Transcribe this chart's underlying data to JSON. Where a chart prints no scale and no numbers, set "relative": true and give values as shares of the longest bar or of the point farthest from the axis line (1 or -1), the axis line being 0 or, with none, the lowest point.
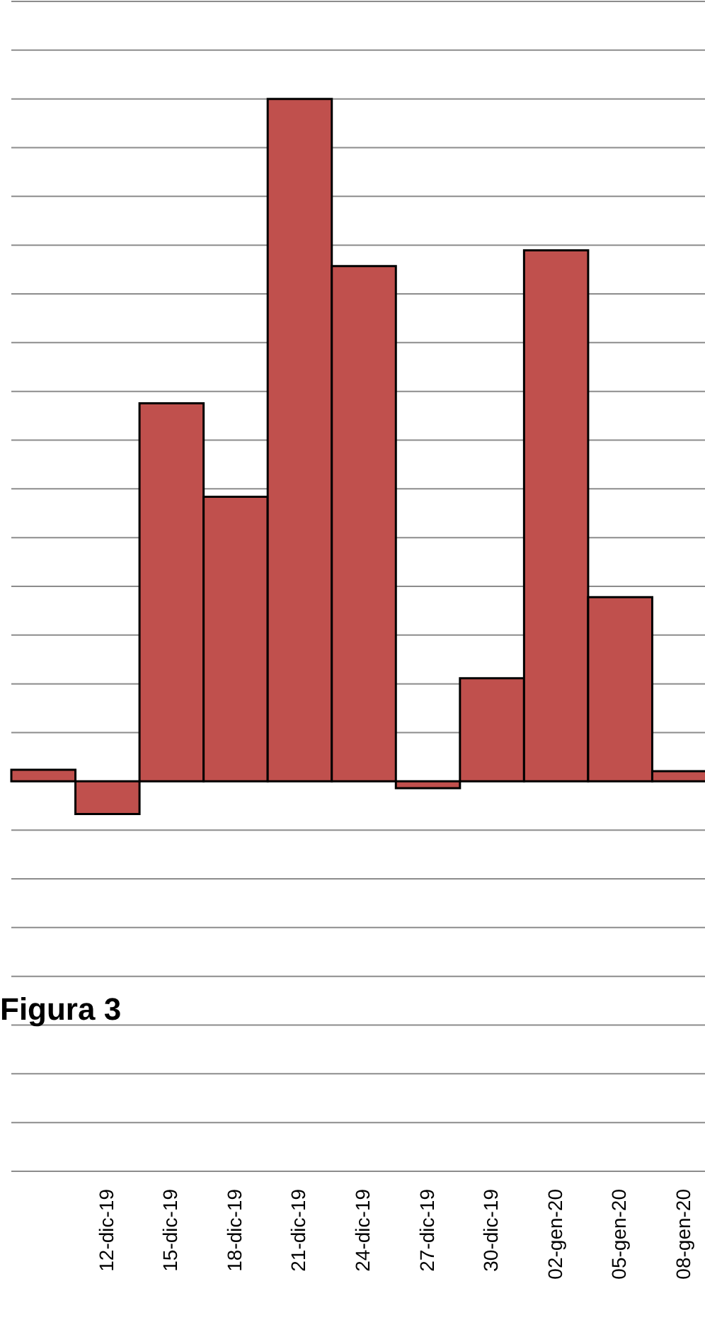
{
  "chart_data": {
    "type": "bar",
    "relative": true,
    "grid": "y",
    "color": "#c0504d",
    "categories": [
      null,
      "12-dic-19",
      "15-dic-19",
      "18-dic-19",
      "21-dic-19",
      "24-dic-19",
      "27-dic-19",
      "30-dic-19",
      "02-gen-20",
      "05-gen-20",
      "08-gen-20"
    ],
    "values": [
      0.017,
      -0.048,
      0.554,
      0.417,
      1,
      0.755,
      -0.01,
      0.151,
      0.778,
      0.27,
      0.015
    ],
    "annotations": [
      "Figura 3"
    ]
  }
}
